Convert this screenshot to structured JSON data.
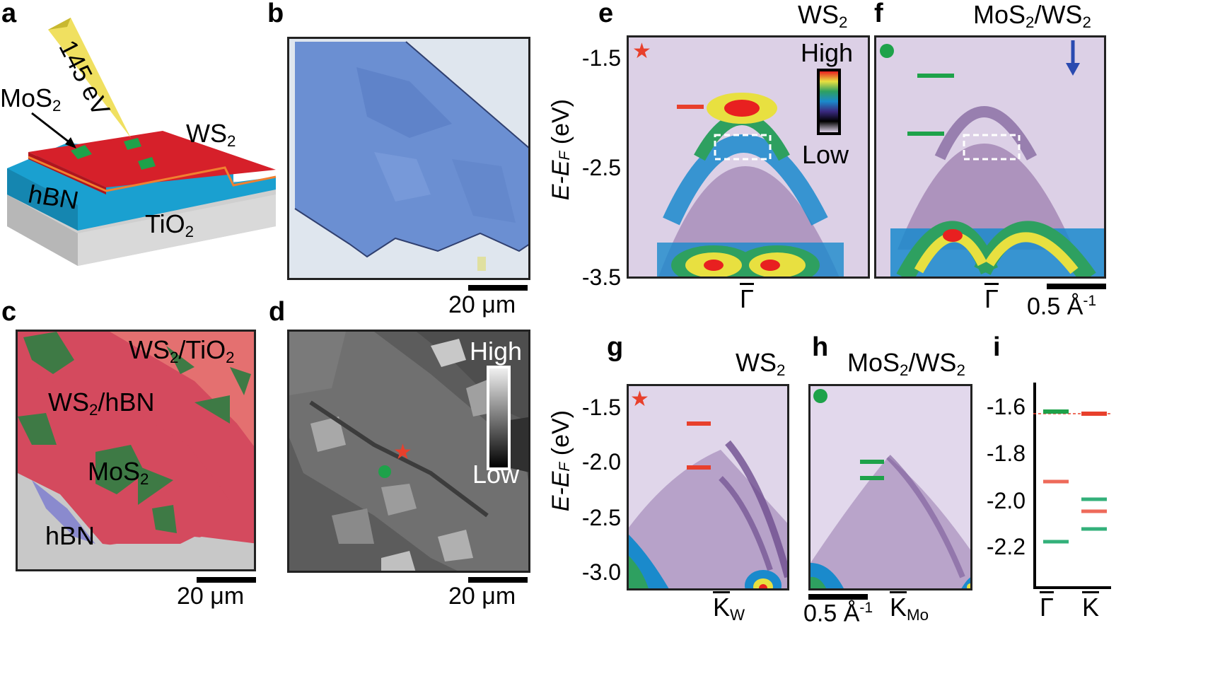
{
  "panels": {
    "a": {
      "label": "a",
      "beam": "145 eV",
      "mos2": "MoS",
      "mos2_sub": "2",
      "ws2": "WS",
      "ws2_sub": "2",
      "hbn": "hBN",
      "tio2": "TiO",
      "tio2_sub": "2"
    },
    "b": {
      "label": "b",
      "scale": "20 μm"
    },
    "c": {
      "label": "c",
      "scale": "20 μm",
      "ws2tio2_a": "WS",
      "ws2tio2_b": "2",
      "ws2tio2_c": "/TiO",
      "ws2tio2_d": "2",
      "ws2hbn_a": "WS",
      "ws2hbn_b": "2",
      "ws2hbn_c": "/hBN",
      "mos2_a": "MoS",
      "mos2_b": "2",
      "hbn": "hBN"
    },
    "d": {
      "label": "d",
      "scale": "20 μm",
      "high": "High",
      "low": "Low"
    },
    "e": {
      "label": "e",
      "title_a": "WS",
      "title_b": "2",
      "high": "High",
      "low": "Low",
      "ylabel_a": "E-E",
      "ylabel_b": "F",
      "ylabel_c": " (eV)",
      "xlabel": "Γ",
      "ticks": [
        "-1.5",
        "-2.5",
        "-3.5"
      ]
    },
    "f": {
      "label": "f",
      "title_a": "MoS",
      "title_b": "2",
      "title_c": "/WS",
      "title_d": "2",
      "xlabel": "Γ",
      "scale_a": "0.5 Å",
      "scale_b": "-1"
    },
    "g": {
      "label": "g",
      "title_a": "WS",
      "title_b": "2",
      "ylabel_a": "E-E",
      "ylabel_b": "F",
      "ylabel_c": " (eV)",
      "ticks": [
        "-1.5",
        "-2.0",
        "-2.5",
        "-3.0"
      ],
      "xlabel_a": "K",
      "xlabel_b": "W"
    },
    "h": {
      "label": "h",
      "title_a": "MoS",
      "title_b": "2",
      "title_c": "/WS",
      "title_d": "2",
      "scale_a": "0.5 Å",
      "scale_b": "-1",
      "xlabel_a": "K",
      "xlabel_b": "Mo"
    },
    "i": {
      "label": "i",
      "ticks": [
        "-1.6",
        "-1.8",
        "-2.0",
        "-2.2"
      ],
      "x_gamma": "Γ",
      "x_k": "K"
    }
  },
  "colors": {
    "red": "#e8402c",
    "green": "#1ea24a",
    "ws2_red": "#d6202a",
    "hbn_blue": "#1aa0d0",
    "tio2_gray": "#c8c8c8",
    "arrow_blue": "#2a4ab0",
    "arpes_bg": "#dcd0e6"
  }
}
